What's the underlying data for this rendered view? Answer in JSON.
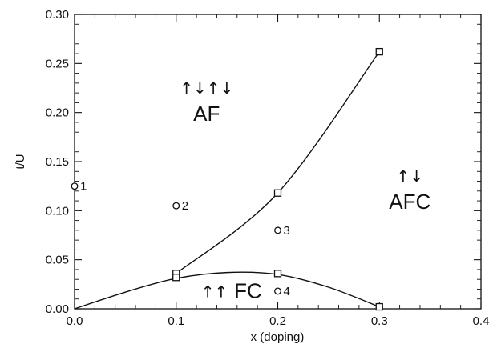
{
  "chart_data": {
    "type": "scatter",
    "title": "",
    "xlabel": "x (doping)",
    "ylabel": "t/U",
    "xlim": [
      0.0,
      0.4
    ],
    "ylim": [
      0.0,
      0.3
    ],
    "grid": false,
    "x_ticks": [
      0.0,
      0.1,
      0.2,
      0.3,
      0.4
    ],
    "x_tick_labels": [
      "0.0",
      "0.1",
      "0.2",
      "0.3",
      "0.4"
    ],
    "y_ticks": [
      0.0,
      0.05,
      0.1,
      0.15,
      0.2,
      0.25,
      0.3
    ],
    "y_tick_labels": [
      "0.00",
      "0.05",
      "0.10",
      "0.15",
      "0.20",
      "0.25",
      "0.30"
    ],
    "boundary_upper": {
      "marker": "square",
      "points": [
        [
          0.1,
          0.036
        ],
        [
          0.2,
          0.118
        ],
        [
          0.3,
          0.262
        ]
      ]
    },
    "boundary_lower": {
      "marker": "square",
      "points": [
        [
          0.1,
          0.032
        ],
        [
          0.2,
          0.036
        ],
        [
          0.3,
          0.002
        ]
      ],
      "curve": [
        [
          0.0,
          0.0
        ],
        [
          0.05,
          0.017
        ],
        [
          0.1,
          0.031
        ],
        [
          0.15,
          0.037
        ],
        [
          0.2,
          0.035
        ],
        [
          0.25,
          0.022
        ],
        [
          0.3,
          0.002
        ]
      ]
    },
    "labeled_points": [
      {
        "label": "1",
        "x": 0.0,
        "y": 0.125
      },
      {
        "label": "2",
        "x": 0.1,
        "y": 0.105
      },
      {
        "label": "3",
        "x": 0.2,
        "y": 0.08
      },
      {
        "label": "4",
        "x": 0.2,
        "y": 0.018
      }
    ],
    "regions": [
      {
        "label": "AF",
        "arrows": "↑↓↑↓",
        "x": 0.13,
        "y": 0.195
      },
      {
        "label": "AFC",
        "arrows": "↑↓",
        "x": 0.33,
        "y": 0.105
      },
      {
        "label": "FC",
        "arrows": "↑↑",
        "x": 0.155,
        "y": 0.012
      }
    ]
  }
}
